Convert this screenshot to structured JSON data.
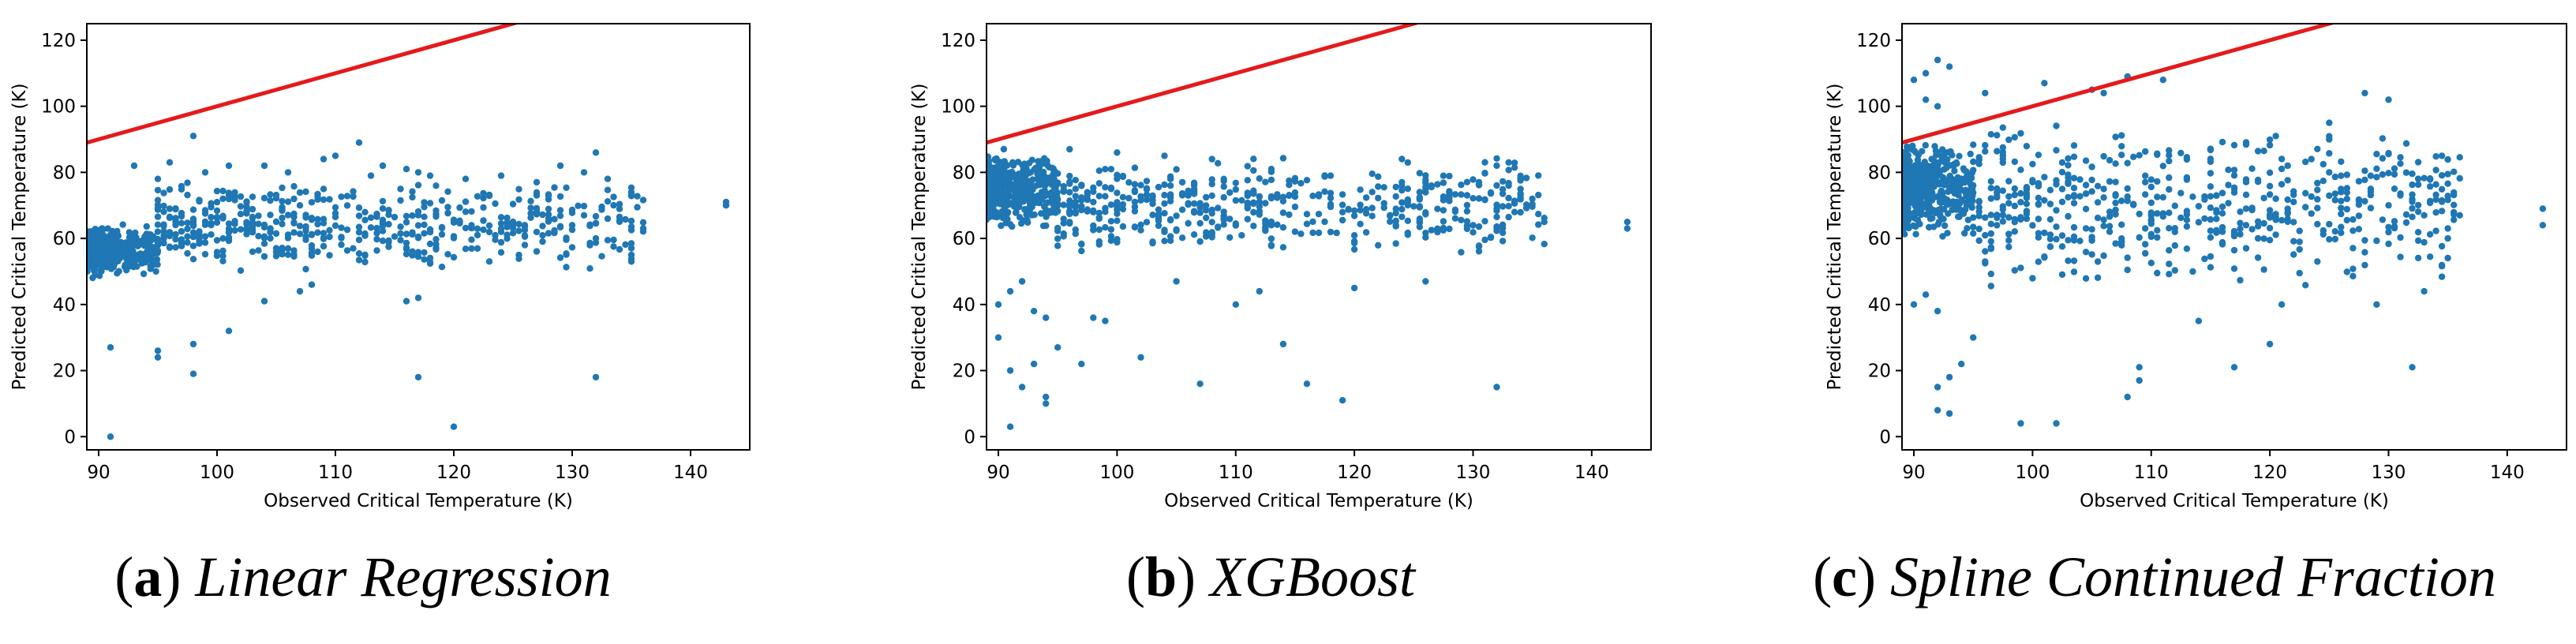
{
  "chart_data": [
    {
      "type": "scatter",
      "caption": {
        "letter": "a",
        "text": "Linear Regression"
      },
      "xlabel": "Observed Critical Temperature (K)",
      "ylabel": "Predicted Critical Temperature (K)",
      "xlim": [
        89,
        145
      ],
      "ylim": [
        -4,
        125
      ],
      "xticks": [
        90,
        100,
        110,
        120,
        130,
        140
      ],
      "yticks": [
        0,
        20,
        40,
        60,
        80,
        100,
        120
      ],
      "reference_line": {
        "color": "#e41a1c",
        "slope": 1.0,
        "intercept": 0
      },
      "point_color": "#1f77b4",
      "cluster": {
        "x": [
          89,
          95
        ],
        "y": [
          47,
          66
        ],
        "n": 420
      },
      "points": [
        [
          91,
          0
        ],
        [
          91,
          27
        ],
        [
          95,
          24
        ],
        [
          95,
          26
        ],
        [
          98,
          19
        ],
        [
          98,
          28
        ],
        [
          101,
          32
        ],
        [
          117,
          18
        ],
        [
          120,
          3
        ],
        [
          132,
          18
        ],
        [
          116,
          41
        ],
        [
          117,
          42
        ],
        [
          104,
          41
        ],
        [
          107,
          44
        ],
        [
          108,
          46
        ],
        [
          93,
          82
        ],
        [
          95,
          78
        ],
        [
          96,
          83
        ],
        [
          98,
          91
        ],
        [
          99,
          80
        ],
        [
          101,
          82
        ],
        [
          104,
          82
        ],
        [
          106,
          80
        ],
        [
          109,
          84
        ],
        [
          110,
          85
        ],
        [
          112,
          89
        ],
        [
          113,
          79
        ],
        [
          114,
          82
        ],
        [
          116,
          81
        ],
        [
          117,
          80
        ],
        [
          118,
          79
        ],
        [
          121,
          78
        ],
        [
          124,
          79
        ],
        [
          127,
          77
        ],
        [
          129,
          82
        ],
        [
          131,
          80
        ],
        [
          132,
          86
        ],
        [
          133,
          78
        ],
        [
          135,
          74
        ],
        [
          143,
          71
        ],
        [
          143,
          70
        ],
        [
          136,
          63
        ],
        [
          135,
          55
        ],
        [
          135,
          53
        ],
        [
          130,
          64
        ],
        [
          132,
          60
        ],
        [
          128,
          66
        ],
        [
          126,
          64
        ],
        [
          124,
          62
        ],
        [
          122,
          61
        ]
      ],
      "band": {
        "x": [
          95,
          136
        ],
        "y_low": 50,
        "y_high": 78,
        "n": 520
      }
    },
    {
      "type": "scatter",
      "caption": {
        "letter": "b",
        "text": "XGBoost"
      },
      "xlabel": "Observed Critical Temperature (K)",
      "ylabel": "Predicted Critical Temperature (K)",
      "xlim": [
        89,
        145
      ],
      "ylim": [
        -4,
        125
      ],
      "xticks": [
        90,
        100,
        110,
        120,
        130,
        140
      ],
      "yticks": [
        0,
        20,
        40,
        60,
        80,
        100,
        120
      ],
      "reference_line": {
        "color": "#e41a1c",
        "slope": 1.0,
        "intercept": 0
      },
      "point_color": "#1f77b4",
      "cluster": {
        "x": [
          89,
          95
        ],
        "y": [
          60,
          89
        ],
        "n": 460
      },
      "points": [
        [
          90,
          30
        ],
        [
          91,
          20
        ],
        [
          91,
          3
        ],
        [
          92,
          15
        ],
        [
          93,
          22
        ],
        [
          94,
          12
        ],
        [
          94,
          10
        ],
        [
          95,
          27
        ],
        [
          97,
          22
        ],
        [
          98,
          36
        ],
        [
          99,
          35
        ],
        [
          102,
          24
        ],
        [
          105,
          47
        ],
        [
          107,
          16
        ],
        [
          114,
          28
        ],
        [
          116,
          16
        ],
        [
          119,
          11
        ],
        [
          132,
          15
        ],
        [
          110,
          40
        ],
        [
          112,
          44
        ],
        [
          90,
          40
        ],
        [
          91,
          44
        ],
        [
          92,
          47
        ],
        [
          93,
          38
        ],
        [
          94,
          36
        ],
        [
          120,
          45
        ],
        [
          126,
          47
        ],
        [
          143,
          65
        ],
        [
          143,
          63
        ],
        [
          136,
          65
        ],
        [
          124,
          77
        ],
        [
          128,
          74
        ],
        [
          133,
          76
        ],
        [
          135,
          72
        ],
        [
          118,
          79
        ],
        [
          113,
          81
        ],
        [
          108,
          84
        ],
        [
          104,
          85
        ],
        [
          100,
          86
        ],
        [
          96,
          87
        ]
      ],
      "band": {
        "x": [
          95,
          136
        ],
        "y_low": 55,
        "y_high": 85,
        "n": 520
      }
    },
    {
      "type": "scatter",
      "caption": {
        "letter": "c",
        "text": "Spline Continued Fraction"
      },
      "xlabel": "Observed Critical Temperature (K)",
      "ylabel": "Predicted Critical Temperature (K)",
      "xlim": [
        89,
        145
      ],
      "ylim": [
        -4,
        125
      ],
      "xticks": [
        90,
        100,
        110,
        120,
        130,
        140
      ],
      "yticks": [
        0,
        20,
        40,
        60,
        80,
        100,
        120
      ],
      "reference_line": {
        "color": "#e41a1c",
        "slope": 1.0,
        "intercept": 0
      },
      "point_color": "#1f77b4",
      "cluster": {
        "x": [
          89,
          95
        ],
        "y": [
          58,
          92
        ],
        "n": 460
      },
      "points": [
        [
          90,
          108
        ],
        [
          91,
          110
        ],
        [
          92,
          114
        ],
        [
          93,
          112
        ],
        [
          91,
          102
        ],
        [
          92,
          100
        ],
        [
          96,
          104
        ],
        [
          101,
          107
        ],
        [
          105,
          105
        ],
        [
          106,
          104
        ],
        [
          108,
          109
        ],
        [
          111,
          108
        ],
        [
          128,
          104
        ],
        [
          130,
          102
        ],
        [
          92,
          8
        ],
        [
          93,
          7
        ],
        [
          92,
          15
        ],
        [
          93,
          18
        ],
        [
          94,
          22
        ],
        [
          95,
          30
        ],
        [
          99,
          4
        ],
        [
          102,
          4
        ],
        [
          108,
          12
        ],
        [
          109,
          17
        ],
        [
          109,
          21
        ],
        [
          117,
          21
        ],
        [
          120,
          28
        ],
        [
          132,
          21
        ],
        [
          114,
          35
        ],
        [
          121,
          40
        ],
        [
          129,
          40
        ],
        [
          133,
          44
        ],
        [
          90,
          40
        ],
        [
          91,
          43
        ],
        [
          92,
          38
        ],
        [
          143,
          69
        ],
        [
          143,
          64
        ],
        [
          136,
          67
        ],
        [
          135,
          60
        ],
        [
          125,
          95
        ]
      ],
      "band": {
        "x": [
          95,
          136
        ],
        "y_low": 45,
        "y_high": 95,
        "n": 560
      }
    }
  ]
}
